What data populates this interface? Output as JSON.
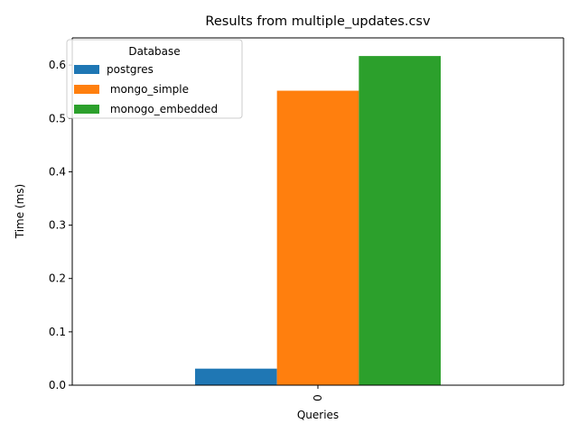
{
  "chart_data": {
    "type": "bar",
    "title": "Results from multiple_updates.csv",
    "xlabel": "Queries",
    "ylabel": "Time (ms)",
    "categories": [
      "0"
    ],
    "ylim": [
      0,
      0.651
    ],
    "yticks": [
      0.0,
      0.1,
      0.2,
      0.3,
      0.4,
      0.5,
      0.6
    ],
    "ytick_labels": [
      "0.0",
      "0.1",
      "0.2",
      "0.3",
      "0.4",
      "0.5",
      "0.6"
    ],
    "grid": false,
    "legend": {
      "title": "Database",
      "position": "top-left"
    },
    "series": [
      {
        "name": "postgres",
        "values": [
          0.031
        ],
        "color": "#1f77b4"
      },
      {
        "name": " mongo_simple",
        "values": [
          0.552
        ],
        "color": "#ff7f0e"
      },
      {
        "name": " monogo_embedded",
        "values": [
          0.617
        ],
        "color": "#2ca02c"
      }
    ]
  }
}
